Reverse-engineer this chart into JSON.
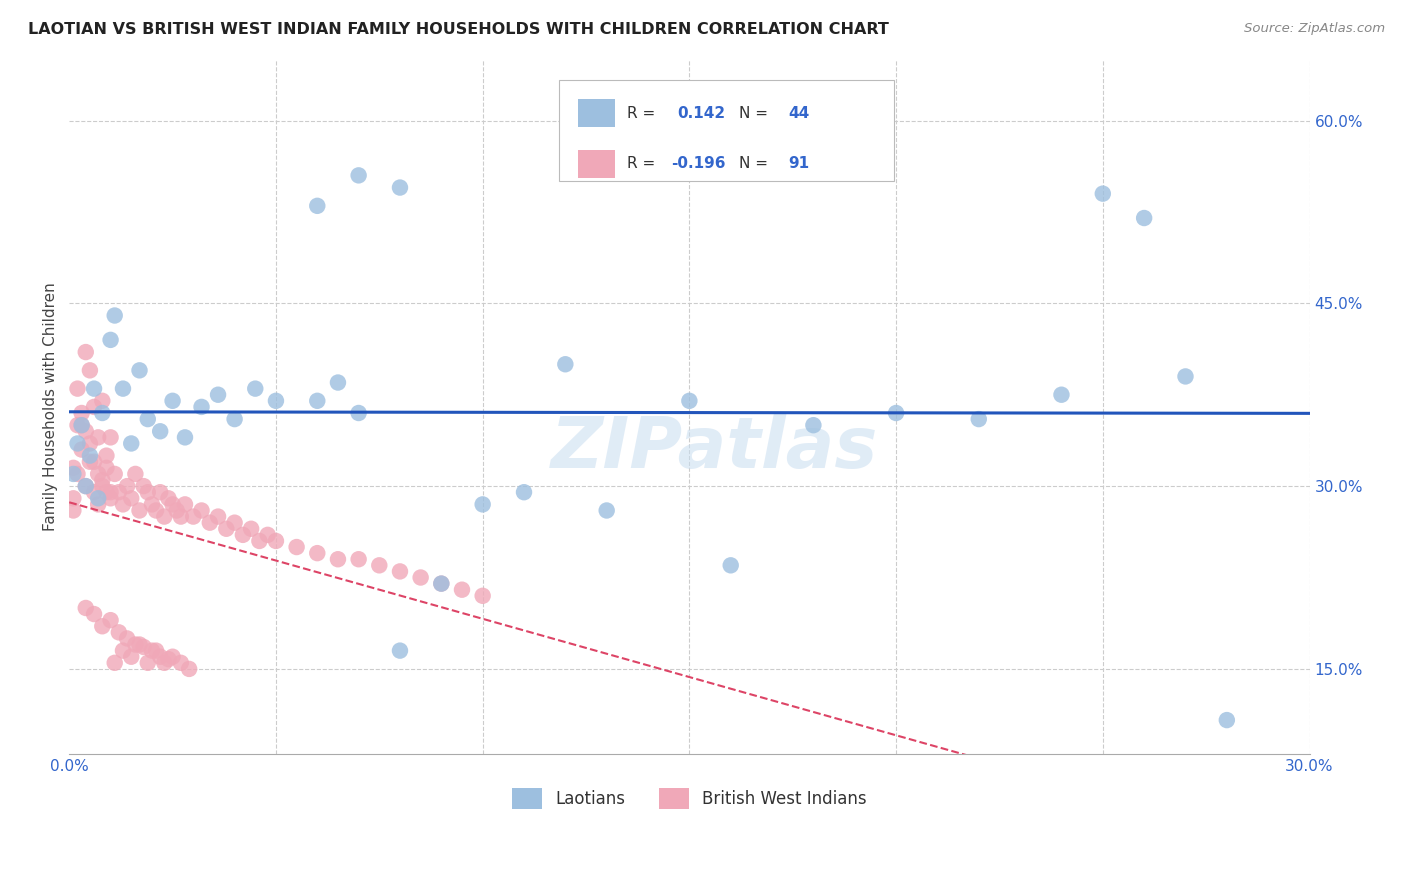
{
  "title": "LAOTIAN VS BRITISH WEST INDIAN FAMILY HOUSEHOLDS WITH CHILDREN CORRELATION CHART",
  "source": "Source: ZipAtlas.com",
  "ylabel": "Family Households with Children",
  "xlim": [
    0.0,
    0.3
  ],
  "ylim": [
    0.08,
    0.65
  ],
  "xticks": [
    0.0,
    0.05,
    0.1,
    0.15,
    0.2,
    0.25,
    0.3
  ],
  "xtick_labels": [
    "0.0%",
    "",
    "",
    "",
    "",
    "",
    "30.0%"
  ],
  "yticks": [
    0.15,
    0.3,
    0.45,
    0.6
  ],
  "ytick_labels": [
    "15.0%",
    "30.0%",
    "45.0%",
    "60.0%"
  ],
  "grid_color": "#cccccc",
  "background_color": "#ffffff",
  "watermark_text": "ZIPatlas",
  "laotian_color": "#9dbfdf",
  "bwi_color": "#f0a8b8",
  "laotian_line_color": "#2255bb",
  "bwi_line_color": "#dd4466",
  "laotian_x": [
    0.001,
    0.002,
    0.003,
    0.004,
    0.005,
    0.006,
    0.007,
    0.008,
    0.01,
    0.011,
    0.013,
    0.015,
    0.017,
    0.019,
    0.022,
    0.025,
    0.028,
    0.032,
    0.036,
    0.04,
    0.045,
    0.05,
    0.06,
    0.065,
    0.07,
    0.08,
    0.09,
    0.1,
    0.11,
    0.13,
    0.16,
    0.2,
    0.22,
    0.24,
    0.25,
    0.26,
    0.27,
    0.28,
    0.06,
    0.07,
    0.08,
    0.12,
    0.15,
    0.18
  ],
  "laotian_y": [
    0.31,
    0.335,
    0.35,
    0.3,
    0.325,
    0.38,
    0.29,
    0.36,
    0.42,
    0.44,
    0.38,
    0.335,
    0.395,
    0.355,
    0.345,
    0.37,
    0.34,
    0.365,
    0.375,
    0.355,
    0.38,
    0.37,
    0.37,
    0.385,
    0.36,
    0.165,
    0.22,
    0.285,
    0.295,
    0.28,
    0.235,
    0.36,
    0.355,
    0.375,
    0.54,
    0.52,
    0.39,
    0.108,
    0.53,
    0.555,
    0.545,
    0.4,
    0.37,
    0.35
  ],
  "bwi_x": [
    0.001,
    0.002,
    0.003,
    0.004,
    0.005,
    0.006,
    0.007,
    0.008,
    0.009,
    0.01,
    0.001,
    0.002,
    0.003,
    0.004,
    0.005,
    0.006,
    0.007,
    0.008,
    0.009,
    0.01,
    0.001,
    0.002,
    0.003,
    0.004,
    0.005,
    0.006,
    0.007,
    0.008,
    0.009,
    0.01,
    0.011,
    0.012,
    0.013,
    0.014,
    0.015,
    0.016,
    0.017,
    0.018,
    0.019,
    0.02,
    0.021,
    0.022,
    0.023,
    0.024,
    0.025,
    0.026,
    0.027,
    0.028,
    0.03,
    0.032,
    0.034,
    0.036,
    0.038,
    0.04,
    0.042,
    0.044,
    0.046,
    0.048,
    0.05,
    0.055,
    0.06,
    0.065,
    0.07,
    0.075,
    0.08,
    0.085,
    0.09,
    0.095,
    0.1,
    0.011,
    0.013,
    0.015,
    0.017,
    0.019,
    0.021,
    0.023,
    0.025,
    0.027,
    0.029,
    0.004,
    0.006,
    0.008,
    0.01,
    0.012,
    0.014,
    0.016,
    0.018,
    0.02,
    0.022,
    0.024
  ],
  "bwi_y": [
    0.315,
    0.38,
    0.35,
    0.41,
    0.395,
    0.365,
    0.34,
    0.37,
    0.325,
    0.34,
    0.29,
    0.31,
    0.33,
    0.3,
    0.32,
    0.295,
    0.285,
    0.305,
    0.315,
    0.295,
    0.28,
    0.35,
    0.36,
    0.345,
    0.335,
    0.32,
    0.31,
    0.3,
    0.295,
    0.29,
    0.31,
    0.295,
    0.285,
    0.3,
    0.29,
    0.31,
    0.28,
    0.3,
    0.295,
    0.285,
    0.28,
    0.295,
    0.275,
    0.29,
    0.285,
    0.28,
    0.275,
    0.285,
    0.275,
    0.28,
    0.27,
    0.275,
    0.265,
    0.27,
    0.26,
    0.265,
    0.255,
    0.26,
    0.255,
    0.25,
    0.245,
    0.24,
    0.24,
    0.235,
    0.23,
    0.225,
    0.22,
    0.215,
    0.21,
    0.155,
    0.165,
    0.16,
    0.17,
    0.155,
    0.165,
    0.155,
    0.16,
    0.155,
    0.15,
    0.2,
    0.195,
    0.185,
    0.19,
    0.18,
    0.175,
    0.17,
    0.168,
    0.165,
    0.16,
    0.158
  ]
}
